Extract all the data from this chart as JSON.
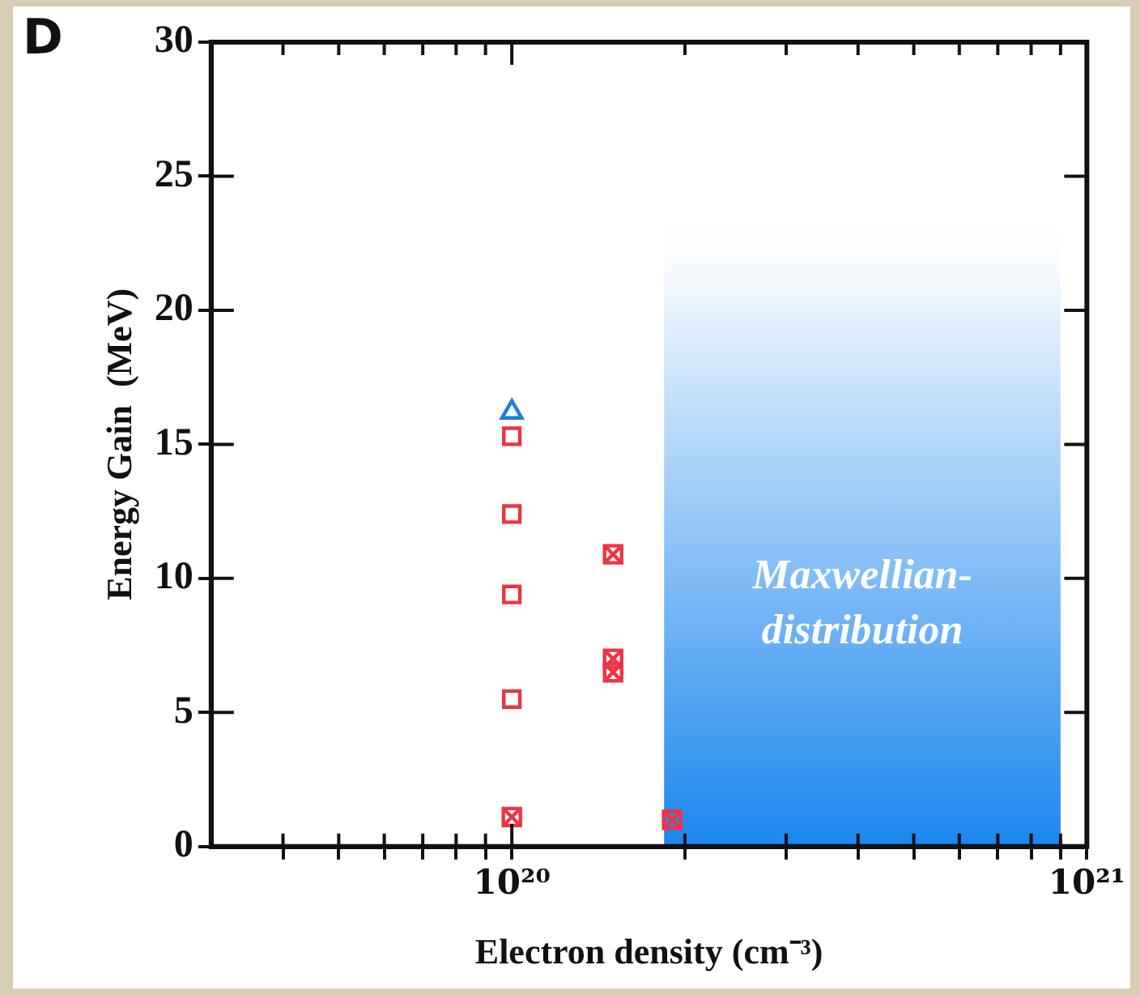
{
  "chart_data": {
    "type": "scatter",
    "xlabel": "Electron density (cm⁻³)",
    "ylabel": "Energy Gain  (MeV)",
    "log": "x",
    "xlim": [
      3e+19,
      1e+21
    ],
    "xticks": [
      {
        "value": 4e+19,
        "label": null
      },
      {
        "value": 5e+19,
        "label": null
      },
      {
        "value": 6e+19,
        "label": null
      },
      {
        "value": 7e+19,
        "label": null
      },
      {
        "value": 8e+19,
        "label": null
      },
      {
        "value": 9e+19,
        "label": null
      },
      {
        "value": 1e+20,
        "label": "10²⁰"
      },
      {
        "value": 2e+20,
        "label": null
      },
      {
        "value": 3e+20,
        "label": null
      },
      {
        "value": 4e+20,
        "label": null
      },
      {
        "value": 5e+20,
        "label": null
      },
      {
        "value": 6e+20,
        "label": null
      },
      {
        "value": 7e+20,
        "label": null
      },
      {
        "value": 8e+20,
        "label": null
      },
      {
        "value": 9e+20,
        "label": null
      },
      {
        "value": 1e+21,
        "label": "10²¹"
      }
    ],
    "ylim": [
      0,
      30
    ],
    "yticks": [
      0,
      5,
      10,
      15,
      20,
      25,
      30
    ],
    "grid": false,
    "legend": false,
    "series": [
      {
        "marker": "square",
        "color": "#ee3344",
        "x": [
          1e+20,
          1e+20,
          1e+20,
          1e+20
        ],
        "values": [
          15.3,
          12.4,
          9.4,
          5.5
        ]
      },
      {
        "marker": "cross",
        "color": "#ee3344",
        "x": [
          1e+20,
          1.5e+20,
          1.5e+20,
          1.5e+20,
          1.9e+20
        ],
        "values": [
          1.1,
          10.9,
          7.0,
          6.5,
          1.0
        ]
      },
      {
        "marker": "triangle",
        "color": "#1a7fe0",
        "x": [
          1e+20
        ],
        "values": [
          16.2
        ]
      }
    ],
    "bands": [
      {
        "axis": "x",
        "from": 1.84e+20,
        "to": 9e+20,
        "label": "Maxwellian-distribution",
        "color": "#1a86ee"
      }
    ],
    "annotations": [
      "D"
    ]
  }
}
